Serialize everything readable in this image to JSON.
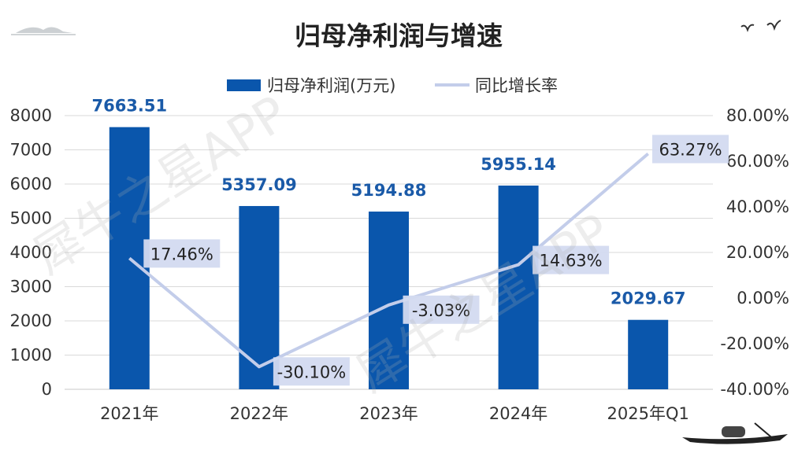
{
  "chart_data": {
    "type": "bar",
    "title": "归母净利润与增速",
    "categories": [
      "2021年",
      "2022年",
      "2023年",
      "2024年",
      "2025年Q1"
    ],
    "series": [
      {
        "name": "归母净利润(万元)",
        "type": "bar",
        "axis": "left",
        "color": "#0a56ac",
        "values": [
          7663.51,
          5357.09,
          5194.88,
          5955.14,
          2029.67
        ],
        "labels": [
          "7663.51",
          "5357.09",
          "5194.88",
          "5955.14",
          "2029.67"
        ]
      },
      {
        "name": "同比增长率",
        "type": "line",
        "axis": "right",
        "color": "#c3cdea",
        "values": [
          17.46,
          -30.1,
          -3.03,
          14.63,
          63.27
        ],
        "labels": [
          "17.46%",
          "-30.10%",
          "-3.03%",
          "14.63%",
          "63.27%"
        ]
      }
    ],
    "y_left": {
      "range": [
        0,
        8000
      ],
      "ticks": [
        "0",
        "1000",
        "2000",
        "3000",
        "4000",
        "5000",
        "6000",
        "7000",
        "8000"
      ]
    },
    "y_right": {
      "range": [
        -40,
        80
      ],
      "ticks": [
        "-40.00%",
        "-20.00%",
        "0.00%",
        "20.00%",
        "40.00%",
        "60.00%",
        "80.00%"
      ]
    },
    "grid": true,
    "legend_position": "top"
  },
  "watermark": "犀牛之星APP"
}
